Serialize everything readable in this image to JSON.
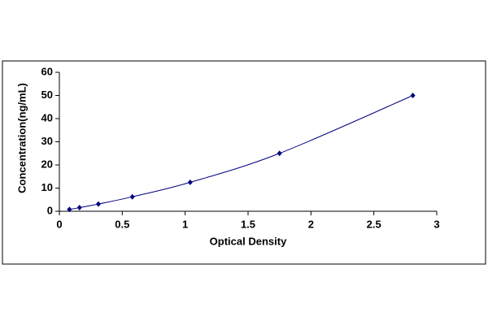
{
  "chart_data": {
    "type": "scatter",
    "smooth": true,
    "x_label": "Optical Density",
    "y_label": "Concentration(ng/mL)",
    "series": [
      {
        "color": "#000080",
        "x": [
          0.08,
          0.16,
          0.31,
          0.58,
          1.04,
          1.75,
          2.81
        ],
        "values": [
          0.78,
          1.56,
          3.12,
          6.25,
          12.5,
          25,
          50
        ]
      }
    ],
    "xlim": [
      0,
      3
    ],
    "xticks": [
      0,
      0.5,
      1,
      1.5,
      2,
      2.5,
      3
    ],
    "ylim": [
      0,
      60
    ],
    "yticks": [
      0,
      10,
      20,
      30,
      40,
      50,
      60
    ],
    "grid": false
  }
}
